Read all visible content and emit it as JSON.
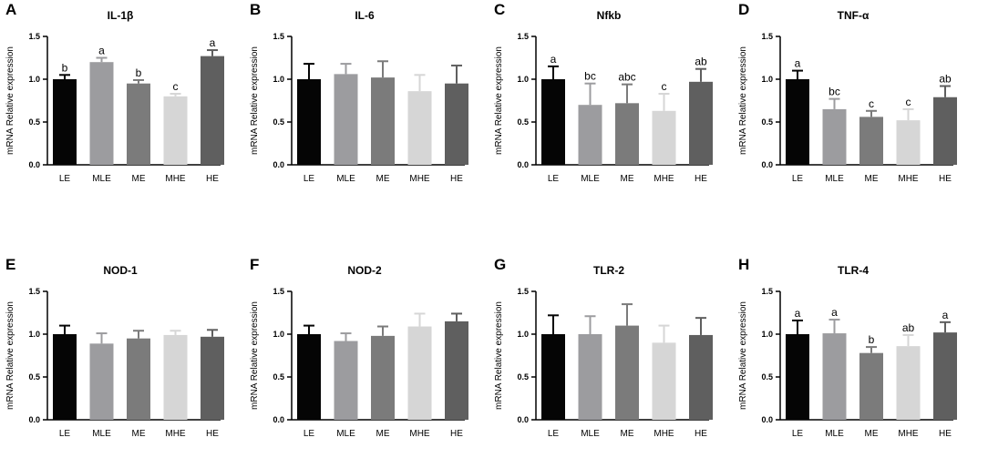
{
  "chart_data": [
    {
      "type": "bar",
      "panel": "A",
      "title": "IL-1β",
      "ylabel": "mRNA Relative expression",
      "categories": [
        "LE",
        "MLE",
        "ME",
        "MHE",
        "HE"
      ],
      "values": [
        1.0,
        1.2,
        0.95,
        0.8,
        1.27
      ],
      "errors": [
        0.05,
        0.05,
        0.04,
        0.03,
        0.07
      ],
      "sig_labels": [
        "b",
        "a",
        "b",
        "c",
        "a"
      ],
      "bar_colors": [
        "#050505",
        "#9c9c9f",
        "#7b7b7b",
        "#d6d6d6",
        "#5f5f5f"
      ],
      "ylim": [
        0,
        1.5
      ],
      "yticks": [
        "0.0",
        "0.5",
        "1.0",
        "1.5"
      ]
    },
    {
      "type": "bar",
      "panel": "B",
      "title": "IL-6",
      "ylabel": "mRNA Relative expression",
      "categories": [
        "LE",
        "MLE",
        "ME",
        "MHE",
        "HE"
      ],
      "values": [
        1.0,
        1.06,
        1.02,
        0.86,
        0.95
      ],
      "errors": [
        0.18,
        0.12,
        0.19,
        0.19,
        0.21
      ],
      "sig_labels": [
        "",
        "",
        "",
        "",
        ""
      ],
      "bar_colors": [
        "#050505",
        "#9c9c9f",
        "#7b7b7b",
        "#d6d6d6",
        "#5f5f5f"
      ],
      "ylim": [
        0,
        1.5
      ],
      "yticks": [
        "0.0",
        "0.5",
        "1.0",
        "1.5"
      ]
    },
    {
      "type": "bar",
      "panel": "C",
      "title": "Nfkb",
      "ylabel": "mRNA Relative expression",
      "categories": [
        "LE",
        "MLE",
        "ME",
        "MHE",
        "HE"
      ],
      "values": [
        1.0,
        0.7,
        0.72,
        0.63,
        0.97
      ],
      "errors": [
        0.15,
        0.25,
        0.22,
        0.2,
        0.15
      ],
      "sig_labels": [
        "a",
        "bc",
        "abc",
        "c",
        "ab"
      ],
      "bar_colors": [
        "#050505",
        "#9c9c9f",
        "#7b7b7b",
        "#d6d6d6",
        "#5f5f5f"
      ],
      "ylim": [
        0,
        1.5
      ],
      "yticks": [
        "0.0",
        "0.5",
        "1.0",
        "1.5"
      ]
    },
    {
      "type": "bar",
      "panel": "D",
      "title": "TNF-α",
      "ylabel": "mRNA Relative expression",
      "categories": [
        "LE",
        "MLE",
        "ME",
        "MHE",
        "HE"
      ],
      "values": [
        1.0,
        0.65,
        0.56,
        0.52,
        0.79
      ],
      "errors": [
        0.1,
        0.12,
        0.07,
        0.13,
        0.13
      ],
      "sig_labels": [
        "a",
        "bc",
        "c",
        "c",
        "ab"
      ],
      "bar_colors": [
        "#050505",
        "#9c9c9f",
        "#7b7b7b",
        "#d6d6d6",
        "#5f5f5f"
      ],
      "ylim": [
        0,
        1.5
      ],
      "yticks": [
        "0.0",
        "0.5",
        "1.0",
        "1.5"
      ]
    },
    {
      "type": "bar",
      "panel": "E",
      "title": "NOD-1",
      "ylabel": "mRNA Relative expression",
      "categories": [
        "LE",
        "MLE",
        "ME",
        "MHE",
        "HE"
      ],
      "values": [
        1.0,
        0.89,
        0.95,
        0.99,
        0.97
      ],
      "errors": [
        0.1,
        0.12,
        0.09,
        0.05,
        0.08
      ],
      "sig_labels": [
        "",
        "",
        "",
        "",
        ""
      ],
      "bar_colors": [
        "#050505",
        "#9c9c9f",
        "#7b7b7b",
        "#d6d6d6",
        "#5f5f5f"
      ],
      "ylim": [
        0,
        1.5
      ],
      "yticks": [
        "0.0",
        "0.5",
        "1.0",
        "1.5"
      ]
    },
    {
      "type": "bar",
      "panel": "F",
      "title": "NOD-2",
      "ylabel": "mRNA Relative expression",
      "categories": [
        "LE",
        "MLE",
        "ME",
        "MHE",
        "HE"
      ],
      "values": [
        1.0,
        0.92,
        0.98,
        1.09,
        1.15
      ],
      "errors": [
        0.1,
        0.09,
        0.11,
        0.15,
        0.09
      ],
      "sig_labels": [
        "",
        "",
        "",
        "",
        ""
      ],
      "bar_colors": [
        "#050505",
        "#9c9c9f",
        "#7b7b7b",
        "#d6d6d6",
        "#5f5f5f"
      ],
      "ylim": [
        0,
        1.5
      ],
      "yticks": [
        "0.0",
        "0.5",
        "1.0",
        "1.5"
      ]
    },
    {
      "type": "bar",
      "panel": "G",
      "title": "TLR-2",
      "ylabel": "mRNA Relative expression",
      "categories": [
        "LE",
        "MLE",
        "ME",
        "MHE",
        "HE"
      ],
      "values": [
        1.0,
        1.0,
        1.1,
        0.9,
        0.99
      ],
      "errors": [
        0.22,
        0.21,
        0.25,
        0.2,
        0.2
      ],
      "sig_labels": [
        "",
        "",
        "",
        "",
        ""
      ],
      "bar_colors": [
        "#050505",
        "#9c9c9f",
        "#7b7b7b",
        "#d6d6d6",
        "#5f5f5f"
      ],
      "ylim": [
        0,
        1.5
      ],
      "yticks": [
        "0.0",
        "0.5",
        "1.0",
        "1.5"
      ]
    },
    {
      "type": "bar",
      "panel": "H",
      "title": "TLR-4",
      "ylabel": "mRNA Relative expression",
      "categories": [
        "LE",
        "MLE",
        "ME",
        "MHE",
        "HE"
      ],
      "values": [
        1.0,
        1.01,
        0.78,
        0.86,
        1.02
      ],
      "errors": [
        0.16,
        0.16,
        0.07,
        0.13,
        0.12
      ],
      "sig_labels": [
        "a",
        "a",
        "b",
        "ab",
        "a"
      ],
      "bar_colors": [
        "#050505",
        "#9c9c9f",
        "#7b7b7b",
        "#d6d6d6",
        "#5f5f5f"
      ],
      "ylim": [
        0,
        1.5
      ],
      "yticks": [
        "0.0",
        "0.5",
        "1.0",
        "1.5"
      ]
    }
  ]
}
